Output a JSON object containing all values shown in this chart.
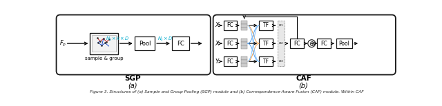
{
  "figsize": [
    6.4,
    1.54
  ],
  "dpi": 100,
  "bg_color": "#ffffff",
  "caption": "Figure 3. Structures of (a) Sample and Group Pooling (SGP) module and (b) Correspondence-Aware Fusion (CAF) module. Within CAF",
  "sgp_label": "SGP",
  "caf_label": "CAF",
  "sub_a": "(a)",
  "sub_b": "(b)",
  "ec": "#1a1a1a",
  "gray_fc": "#cccccc",
  "orange": "#f0a050",
  "blue": "#50a0f0",
  "green": "#50c050",
  "cyan_label": "#00aacc"
}
